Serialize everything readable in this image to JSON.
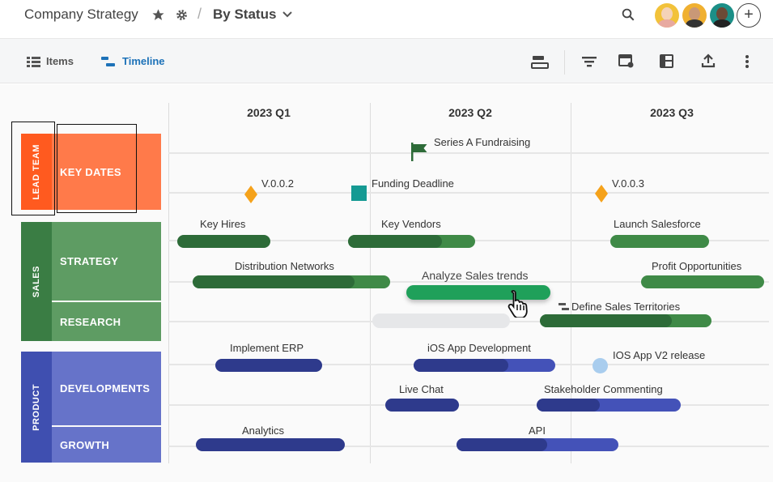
{
  "header": {
    "title": "Company Strategy",
    "view": "By Status",
    "avatars": [
      "avatar-1",
      "avatar-2",
      "avatar-3"
    ]
  },
  "toolbar": {
    "tabs": [
      {
        "label": "Items",
        "icon": "list-icon"
      },
      {
        "label": "Timeline",
        "icon": "timeline-icon"
      }
    ]
  },
  "timeline": {
    "quarters": [
      "2023 Q1",
      "2023 Q2",
      "2023 Q3"
    ],
    "groups": [
      {
        "label": "LEAD TEAM",
        "color": "#ff5a1f",
        "rows": [
          {
            "label": "KEY DATES",
            "color": "#ff7a4a"
          }
        ]
      },
      {
        "label": "SALES",
        "color": "#3a7d44",
        "rows": [
          {
            "label": "STRATEGY",
            "color": "#5e9c63"
          },
          {
            "label": "RESEARCH",
            "color": "#5e9c63"
          }
        ]
      },
      {
        "label": "PRODUCT",
        "color": "#3f4fb0",
        "rows": [
          {
            "label": "DEVELOPMENTS",
            "color": "#6673c9"
          },
          {
            "label": "GROWTH",
            "color": "#6673c9"
          }
        ]
      }
    ],
    "milestones": {
      "series_a": "Series A Fundraising",
      "v002": "V.0.0.2",
      "funding": "Funding Deadline",
      "v003": "V.0.0.3",
      "ios_v2": "IOS App V2 release"
    },
    "bars": {
      "key_hires": "Key Hires",
      "key_vendors": "Key Vendors",
      "launch_salesforce": "Launch Salesforce",
      "distribution": "Distribution Networks",
      "analyze": "Analyze Sales trends",
      "profit": "Profit Opportunities",
      "define_territories": "Define Sales Territories",
      "implement_erp": "Implement ERP",
      "ios_dev": "iOS App Development",
      "live_chat": "Live Chat",
      "stakeholder": "Stakeholder Commenting",
      "analytics": "Analytics",
      "api": "API"
    },
    "colors": {
      "green_dark": "#2d6b38",
      "green": "#3f8a47",
      "green_active": "#1fa05a",
      "blue_dark": "#2e3a8c",
      "blue": "#4452b8",
      "diamond": "#f5a21b",
      "square": "#159a93",
      "circle": "#a9cdee"
    }
  }
}
